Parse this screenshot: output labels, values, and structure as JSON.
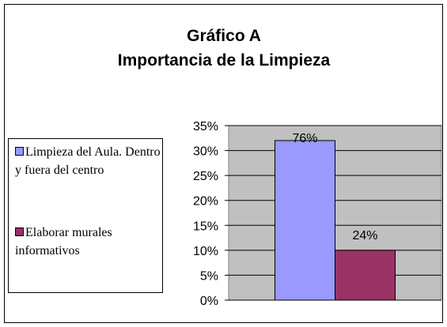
{
  "chart_data": {
    "type": "bar",
    "title": "Gráfico A",
    "subtitle": "Importancia de la Limpieza",
    "categories": [
      null
    ],
    "series": [
      {
        "name": "Limpieza del Aula. Dentro y fuera del centro",
        "color": "#9999ff",
        "values": [
          32
        ]
      },
      {
        "name": "Elaborar murales informativos",
        "color": "#993366",
        "values": [
          10
        ]
      }
    ],
    "annotations": [
      "76%",
      "24%"
    ],
    "ylim": [
      0,
      35
    ],
    "yticks": [
      {
        "value": 0,
        "label": "0%"
      },
      {
        "value": 5,
        "label": "5%"
      },
      {
        "value": 10,
        "label": "10%"
      },
      {
        "value": 15,
        "label": "15%"
      },
      {
        "value": 20,
        "label": "20%"
      },
      {
        "value": 25,
        "label": "25%"
      },
      {
        "value": 30,
        "label": "30%"
      },
      {
        "value": 35,
        "label": "35%"
      }
    ],
    "grid": true,
    "legend": "left"
  }
}
